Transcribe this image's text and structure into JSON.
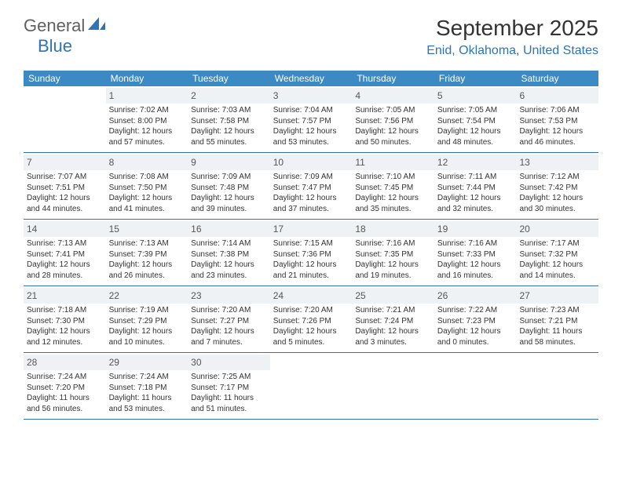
{
  "brand": {
    "part1": "General",
    "part2": "Blue"
  },
  "title": "September 2025",
  "location": "Enid, Oklahoma, United States",
  "colors": {
    "header_bg": "#3b8ac4",
    "accent": "#2f74b5",
    "daynum_bg": "#eef2f5",
    "text": "#333333",
    "logo_gray": "#606060"
  },
  "day_names": [
    "Sunday",
    "Monday",
    "Tuesday",
    "Wednesday",
    "Thursday",
    "Friday",
    "Saturday"
  ],
  "weeks": [
    [
      null,
      {
        "n": "1",
        "sr": "Sunrise: 7:02 AM",
        "ss": "Sunset: 8:00 PM",
        "dl": "Daylight: 12 hours and 57 minutes."
      },
      {
        "n": "2",
        "sr": "Sunrise: 7:03 AM",
        "ss": "Sunset: 7:58 PM",
        "dl": "Daylight: 12 hours and 55 minutes."
      },
      {
        "n": "3",
        "sr": "Sunrise: 7:04 AM",
        "ss": "Sunset: 7:57 PM",
        "dl": "Daylight: 12 hours and 53 minutes."
      },
      {
        "n": "4",
        "sr": "Sunrise: 7:05 AM",
        "ss": "Sunset: 7:56 PM",
        "dl": "Daylight: 12 hours and 50 minutes."
      },
      {
        "n": "5",
        "sr": "Sunrise: 7:05 AM",
        "ss": "Sunset: 7:54 PM",
        "dl": "Daylight: 12 hours and 48 minutes."
      },
      {
        "n": "6",
        "sr": "Sunrise: 7:06 AM",
        "ss": "Sunset: 7:53 PM",
        "dl": "Daylight: 12 hours and 46 minutes."
      }
    ],
    [
      {
        "n": "7",
        "sr": "Sunrise: 7:07 AM",
        "ss": "Sunset: 7:51 PM",
        "dl": "Daylight: 12 hours and 44 minutes."
      },
      {
        "n": "8",
        "sr": "Sunrise: 7:08 AM",
        "ss": "Sunset: 7:50 PM",
        "dl": "Daylight: 12 hours and 41 minutes."
      },
      {
        "n": "9",
        "sr": "Sunrise: 7:09 AM",
        "ss": "Sunset: 7:48 PM",
        "dl": "Daylight: 12 hours and 39 minutes."
      },
      {
        "n": "10",
        "sr": "Sunrise: 7:09 AM",
        "ss": "Sunset: 7:47 PM",
        "dl": "Daylight: 12 hours and 37 minutes."
      },
      {
        "n": "11",
        "sr": "Sunrise: 7:10 AM",
        "ss": "Sunset: 7:45 PM",
        "dl": "Daylight: 12 hours and 35 minutes."
      },
      {
        "n": "12",
        "sr": "Sunrise: 7:11 AM",
        "ss": "Sunset: 7:44 PM",
        "dl": "Daylight: 12 hours and 32 minutes."
      },
      {
        "n": "13",
        "sr": "Sunrise: 7:12 AM",
        "ss": "Sunset: 7:42 PM",
        "dl": "Daylight: 12 hours and 30 minutes."
      }
    ],
    [
      {
        "n": "14",
        "sr": "Sunrise: 7:13 AM",
        "ss": "Sunset: 7:41 PM",
        "dl": "Daylight: 12 hours and 28 minutes."
      },
      {
        "n": "15",
        "sr": "Sunrise: 7:13 AM",
        "ss": "Sunset: 7:39 PM",
        "dl": "Daylight: 12 hours and 26 minutes."
      },
      {
        "n": "16",
        "sr": "Sunrise: 7:14 AM",
        "ss": "Sunset: 7:38 PM",
        "dl": "Daylight: 12 hours and 23 minutes."
      },
      {
        "n": "17",
        "sr": "Sunrise: 7:15 AM",
        "ss": "Sunset: 7:36 PM",
        "dl": "Daylight: 12 hours and 21 minutes."
      },
      {
        "n": "18",
        "sr": "Sunrise: 7:16 AM",
        "ss": "Sunset: 7:35 PM",
        "dl": "Daylight: 12 hours and 19 minutes."
      },
      {
        "n": "19",
        "sr": "Sunrise: 7:16 AM",
        "ss": "Sunset: 7:33 PM",
        "dl": "Daylight: 12 hours and 16 minutes."
      },
      {
        "n": "20",
        "sr": "Sunrise: 7:17 AM",
        "ss": "Sunset: 7:32 PM",
        "dl": "Daylight: 12 hours and 14 minutes."
      }
    ],
    [
      {
        "n": "21",
        "sr": "Sunrise: 7:18 AM",
        "ss": "Sunset: 7:30 PM",
        "dl": "Daylight: 12 hours and 12 minutes."
      },
      {
        "n": "22",
        "sr": "Sunrise: 7:19 AM",
        "ss": "Sunset: 7:29 PM",
        "dl": "Daylight: 12 hours and 10 minutes."
      },
      {
        "n": "23",
        "sr": "Sunrise: 7:20 AM",
        "ss": "Sunset: 7:27 PM",
        "dl": "Daylight: 12 hours and 7 minutes."
      },
      {
        "n": "24",
        "sr": "Sunrise: 7:20 AM",
        "ss": "Sunset: 7:26 PM",
        "dl": "Daylight: 12 hours and 5 minutes."
      },
      {
        "n": "25",
        "sr": "Sunrise: 7:21 AM",
        "ss": "Sunset: 7:24 PM",
        "dl": "Daylight: 12 hours and 3 minutes."
      },
      {
        "n": "26",
        "sr": "Sunrise: 7:22 AM",
        "ss": "Sunset: 7:23 PM",
        "dl": "Daylight: 12 hours and 0 minutes."
      },
      {
        "n": "27",
        "sr": "Sunrise: 7:23 AM",
        "ss": "Sunset: 7:21 PM",
        "dl": "Daylight: 11 hours and 58 minutes."
      }
    ],
    [
      {
        "n": "28",
        "sr": "Sunrise: 7:24 AM",
        "ss": "Sunset: 7:20 PM",
        "dl": "Daylight: 11 hours and 56 minutes."
      },
      {
        "n": "29",
        "sr": "Sunrise: 7:24 AM",
        "ss": "Sunset: 7:18 PM",
        "dl": "Daylight: 11 hours and 53 minutes."
      },
      {
        "n": "30",
        "sr": "Sunrise: 7:25 AM",
        "ss": "Sunset: 7:17 PM",
        "dl": "Daylight: 11 hours and 51 minutes."
      },
      null,
      null,
      null,
      null
    ]
  ]
}
